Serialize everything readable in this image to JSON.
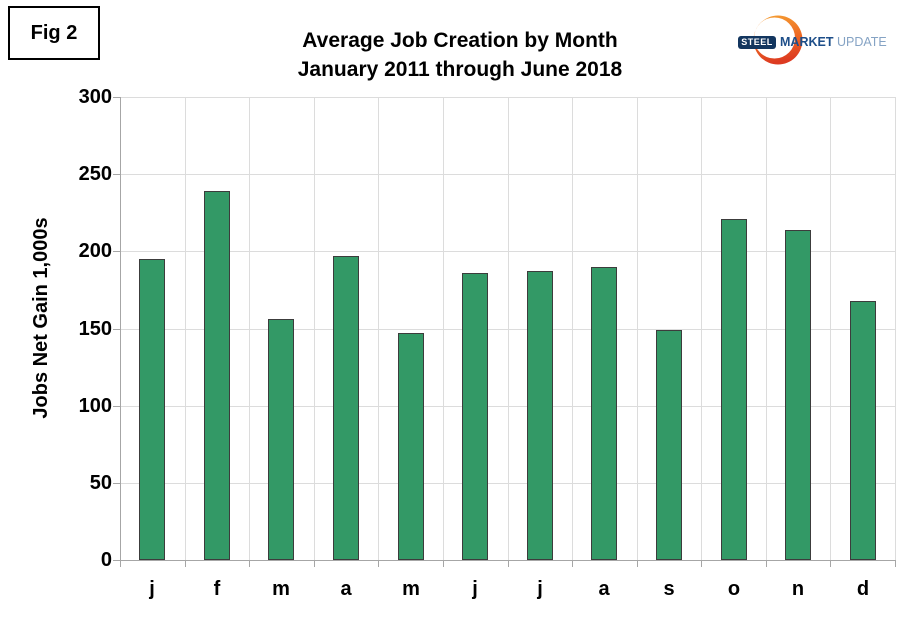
{
  "figure_label": "Fig 2",
  "logo": {
    "badge": "STEEL",
    "word1": "MARKET",
    "word2": "UPDATE",
    "badge_bg": "#13365f",
    "word1_color": "#1d4e89",
    "word2_color": "#85a3c4",
    "crescent_top_color": "#f6a233",
    "crescent_bottom_color": "#dd3b21"
  },
  "chart_data": {
    "type": "bar",
    "title": "Average Job Creation by Month",
    "subtitle": "January 2011 through June 2018",
    "categories": [
      "j",
      "f",
      "m",
      "a",
      "m",
      "j",
      "j",
      "a",
      "s",
      "o",
      "n",
      "d"
    ],
    "values": [
      195,
      239,
      156,
      197,
      147,
      186,
      187,
      190,
      149,
      221,
      214,
      168
    ],
    "xlabel": "",
    "ylabel": "Jobs Net Gain 1,000s",
    "ylim": [
      0,
      300
    ],
    "ytick_step": 50,
    "grid": true,
    "legend": "none",
    "bar_color": "#339966",
    "bar_border_color": "#3c3c3c",
    "gridline_color": "#dcdcdc",
    "axis_color": "#a6a6a6"
  }
}
